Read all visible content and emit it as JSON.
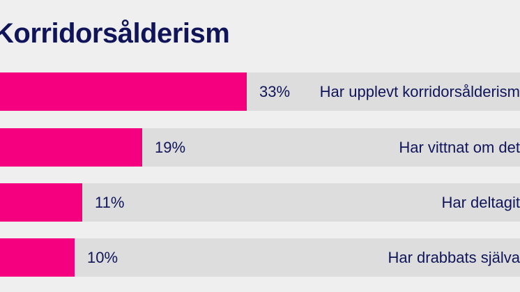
{
  "colors": {
    "background": "#efefef",
    "track": "#dddddd",
    "bar": "#f5007f",
    "text": "#10155a"
  },
  "chart_data": {
    "type": "bar",
    "orientation": "horizontal",
    "title": "Korridorsålderism",
    "categories": [
      "Har upplevt korridorsålderism",
      "Har vittnat om det",
      "Har deltagit",
      "Har drabbats själva"
    ],
    "values": [
      33,
      19,
      11,
      10
    ],
    "value_labels": [
      "33%",
      "19%",
      "11%",
      "10%"
    ],
    "unit": "%",
    "xlim": [
      0,
      80
    ],
    "grid": false,
    "legend": "none"
  }
}
